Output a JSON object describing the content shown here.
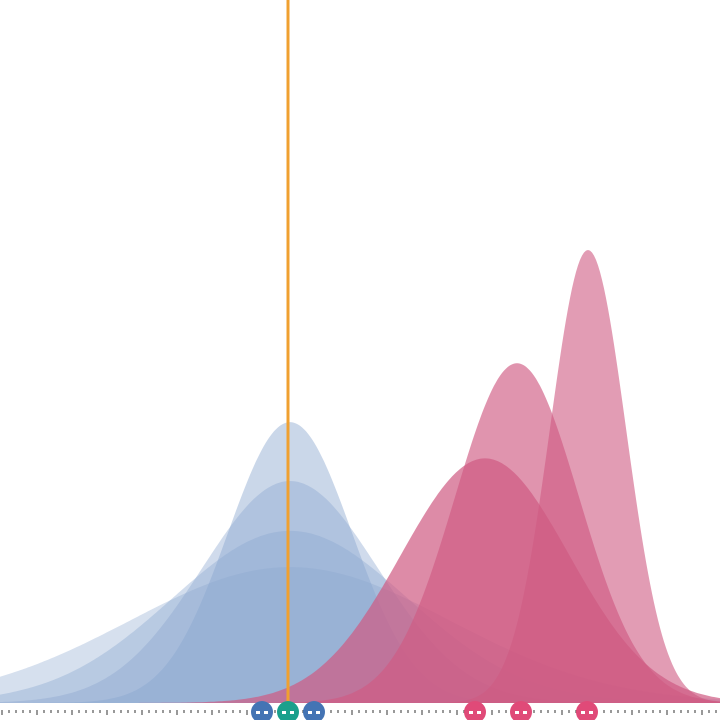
{
  "chart_data": {
    "type": "area",
    "title": "",
    "xlabel": "",
    "ylabel": "",
    "xlim": [
      0,
      720
    ],
    "ylim": [
      0,
      1
    ],
    "grid": false,
    "legend": "none",
    "reference_line": {
      "x": 288,
      "color": "#f0a030"
    },
    "colors": {
      "blue": "#8aa6cf",
      "pink": "#cf5a82",
      "blue_handle": "#4474b4",
      "pink_handle": "#e04a78",
      "teal_handle": "#1aa08c",
      "tick": "#333333"
    },
    "series": [
      {
        "group": "blue",
        "mean": 290,
        "sd": 62,
        "peak": 0.62,
        "opacity": 0.45
      },
      {
        "group": "blue",
        "mean": 290,
        "sd": 88,
        "peak": 0.49,
        "opacity": 0.4
      },
      {
        "group": "blue",
        "mean": 290,
        "sd": 118,
        "peak": 0.38,
        "opacity": 0.38
      },
      {
        "group": "blue",
        "mean": 290,
        "sd": 160,
        "peak": 0.3,
        "opacity": 0.35
      },
      {
        "group": "pink",
        "mean": 485,
        "sd": 84,
        "peak": 0.54,
        "opacity": 0.7
      },
      {
        "group": "pink",
        "mean": 517,
        "sd": 62,
        "peak": 0.75,
        "opacity": 0.65
      },
      {
        "group": "pink",
        "mean": 588,
        "sd": 38,
        "peak": 1.0,
        "opacity": 0.6
      }
    ],
    "handles": [
      {
        "x": 262,
        "group": "blue"
      },
      {
        "x": 314,
        "group": "blue"
      },
      {
        "x": 288,
        "group": "teal"
      },
      {
        "x": 475,
        "group": "pink"
      },
      {
        "x": 521,
        "group": "pink"
      },
      {
        "x": 587,
        "group": "pink"
      }
    ]
  }
}
